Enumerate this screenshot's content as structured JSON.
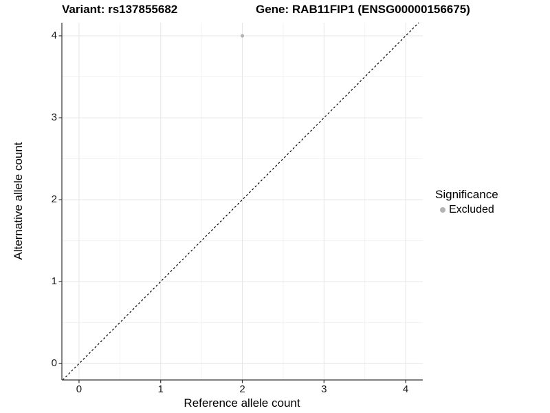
{
  "chart_data": {
    "type": "scatter",
    "title_left": "Variant: rs137855682",
    "title_right": "Gene: RAB11FIP1 (ENSG00000156675)",
    "xlabel": "Reference allele count",
    "ylabel": "Alternative allele count",
    "xlim": [
      -0.21,
      4.21
    ],
    "ylim": [
      -0.2,
      4.16
    ],
    "x_ticks": [
      0,
      1,
      2,
      3,
      4
    ],
    "y_ticks": [
      0,
      1,
      2,
      3,
      4
    ],
    "x_minor_ticks": [
      0.5,
      1.5,
      2.5,
      3.5
    ],
    "y_minor_ticks": [
      0.5,
      1.5,
      2.5,
      3.5
    ],
    "grid": "major and minor gridlines, light gray on white panel",
    "legend": {
      "position": "right",
      "title": "Significance",
      "items": [
        {
          "label": "Excluded",
          "color": "#b3b3b3",
          "marker": "circle"
        }
      ]
    },
    "series": [
      {
        "name": "Excluded",
        "color": "#b3b3b3",
        "marker": "circle",
        "points": [
          {
            "x": 2,
            "y": 4
          }
        ]
      }
    ],
    "reference_line": {
      "kind": "identity y = x",
      "slope": 1,
      "intercept": 0,
      "style": "dashed",
      "color": "#000000"
    },
    "colors": {
      "background": "#ffffff",
      "axis_line": "#333333",
      "tick_label": "#1a1a1a",
      "grid_major": "#e6e6e6",
      "grid_minor": "#f2f2f2"
    }
  }
}
